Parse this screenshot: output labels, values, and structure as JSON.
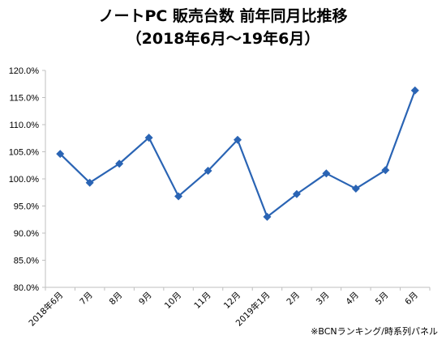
{
  "chart_data": {
    "type": "line",
    "title": "ノートPC 販売台数 前年同月比推移",
    "subtitle": "（2018年6月～19年6月）",
    "categories": [
      "2018年6月",
      "7月",
      "8月",
      "9月",
      "10月",
      "11月",
      "12月",
      "2019年1月",
      "2月",
      "3月",
      "4月",
      "5月",
      "6月"
    ],
    "series": [
      {
        "values": [
          104.6,
          99.3,
          102.8,
          107.6,
          96.8,
          101.5,
          107.2,
          93.0,
          97.2,
          101.0,
          98.2,
          101.6,
          116.3
        ]
      }
    ],
    "y_ticks": [
      "80.0%",
      "85.0%",
      "90.0%",
      "95.0%",
      "100.0%",
      "105.0%",
      "110.0%",
      "115.0%",
      "120.0%"
    ],
    "ylim": [
      80,
      120
    ],
    "y_unit": "%",
    "grid": false,
    "line_color": "#2a64b4",
    "marker": "diamond",
    "source_note": "※BCNランキング/時系列パネル"
  }
}
